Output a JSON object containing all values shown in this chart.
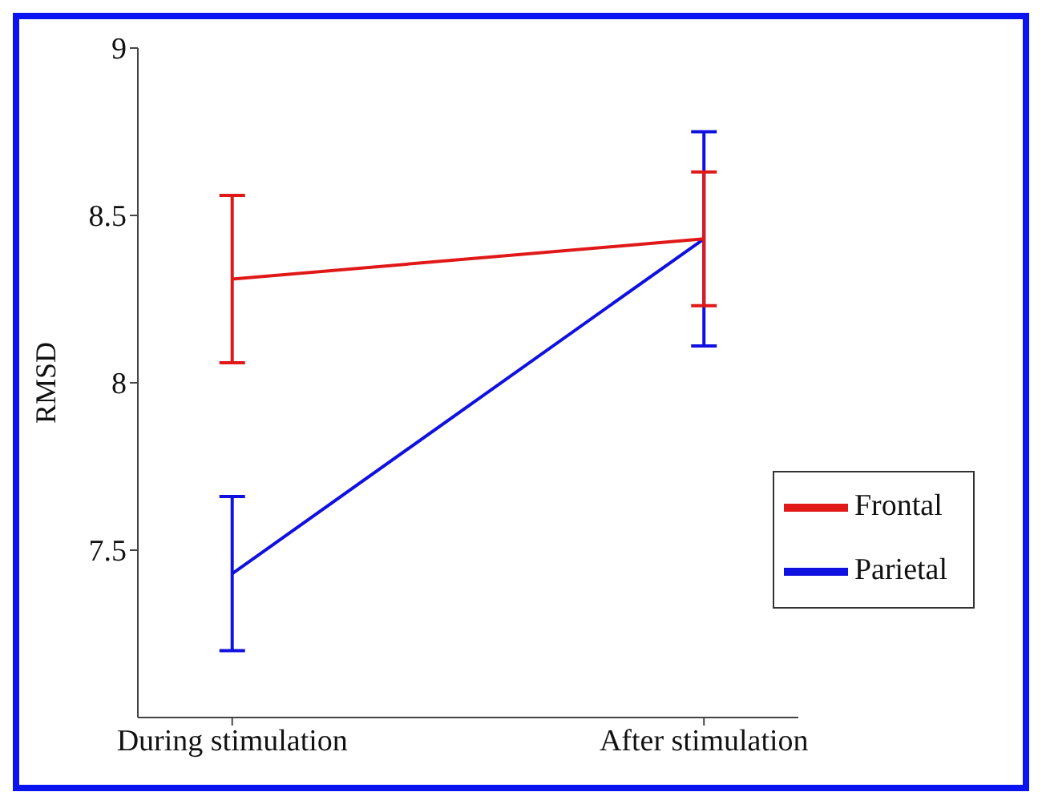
{
  "chart_data": {
    "type": "line",
    "ylabel": "RMSD",
    "categories": [
      "During stimulation",
      "After stimulation"
    ],
    "series": [
      {
        "name": "Parietal",
        "color": "#1010e0",
        "values": [
          7.43,
          8.43
        ],
        "errors": [
          0.23,
          0.32
        ]
      },
      {
        "name": "Frontal",
        "color": "#e01818",
        "values": [
          8.31,
          8.43
        ],
        "errors": [
          0.25,
          0.2
        ]
      }
    ],
    "ylim": [
      7,
      9
    ],
    "yticks": [
      7.5,
      8,
      8.5,
      9
    ],
    "grid": false,
    "legend": "bottom right",
    "marker": "none",
    "line_style": "solid"
  }
}
